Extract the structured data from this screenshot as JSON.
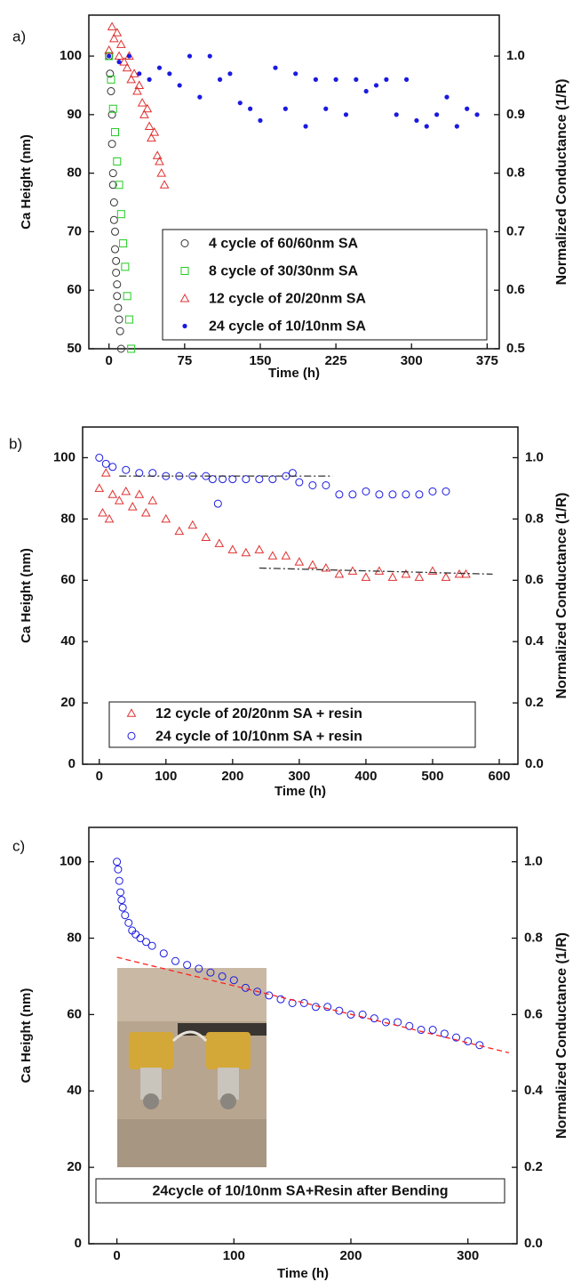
{
  "chart_data": [
    {
      "type": "scatter",
      "panel_label": "a)",
      "xlabel": "Time (h)",
      "ylabel": "Ca Height (nm)",
      "y2label": "Normalized Conductance (1/R)",
      "xlim": [
        -20,
        387
      ],
      "xticks": [
        0,
        75,
        150,
        225,
        300,
        375
      ],
      "ylim": [
        50,
        107
      ],
      "yticks": [
        50,
        60,
        70,
        80,
        90,
        100
      ],
      "y2lim": [
        0.5,
        1.07
      ],
      "y2ticks": [
        0.5,
        0.6,
        0.7,
        0.8,
        0.9,
        {
          "value": 1,
          "label": "1.0"
        }
      ],
      "legend": "lower right",
      "legend_markers": true,
      "series": [
        {
          "name": "4 cycle of 60/60nm SA",
          "color": "#333333",
          "marker": "circle",
          "x": [
            0,
            1,
            2,
            3,
            3,
            4,
            4,
            5,
            5,
            6,
            6,
            7,
            7,
            8,
            8,
            9,
            10,
            11,
            12
          ],
          "values": [
            100,
            97,
            94,
            90,
            85,
            80,
            78,
            75,
            72,
            70,
            67,
            65,
            63,
            61,
            59,
            57,
            55,
            53,
            50
          ]
        },
        {
          "name": "8 cycle of 30/30nm SA",
          "color": "#22cc22",
          "marker": "square",
          "x": [
            0,
            2,
            4,
            6,
            8,
            10,
            12,
            14,
            16,
            18,
            20,
            22
          ],
          "values": [
            100,
            96,
            91,
            87,
            82,
            78,
            73,
            68,
            64,
            59,
            55,
            50
          ]
        },
        {
          "name": "12 cycle of 20/20nm SA",
          "color": "#e03030",
          "marker": "triangle",
          "x": [
            0,
            3,
            5,
            8,
            10,
            12,
            15,
            18,
            20,
            22,
            25,
            28,
            30,
            33,
            35,
            38,
            40,
            42,
            45,
            48,
            50,
            52,
            55
          ],
          "values": [
            101,
            105,
            103,
            104,
            100,
            102,
            99,
            98,
            100,
            96,
            97,
            94,
            95,
            92,
            90,
            91,
            88,
            86,
            87,
            83,
            82,
            80,
            78
          ]
        },
        {
          "name": "24 cycle of 10/10nm SA",
          "color": "#1a1ae0",
          "marker": "dot",
          "x": [
            0,
            10,
            20,
            30,
            40,
            50,
            60,
            70,
            80,
            90,
            100,
            110,
            120,
            130,
            140,
            150,
            165,
            175,
            185,
            195,
            205,
            215,
            225,
            235,
            245,
            255,
            265,
            275,
            285,
            295,
            305,
            315,
            325,
            335,
            345,
            355,
            365
          ],
          "values": [
            100,
            99,
            100,
            97,
            96,
            98,
            97,
            95,
            100,
            93,
            100,
            96,
            97,
            92,
            91,
            89,
            98,
            91,
            97,
            88,
            96,
            91,
            96,
            90,
            96,
            94,
            95,
            96,
            90,
            96,
            89,
            88,
            90,
            93,
            88,
            91,
            90
          ]
        }
      ]
    },
    {
      "type": "scatter",
      "panel_label": "b)",
      "xlabel": "Time (h)",
      "ylabel": "Ca Height (nm)",
      "y2label": "Normalized Conductance (1/R)",
      "xlim": [
        -25,
        628
      ],
      "xticks": [
        0,
        100,
        200,
        300,
        400,
        500,
        600
      ],
      "ylim": [
        0,
        110
      ],
      "yticks": [
        0,
        20,
        40,
        60,
        80,
        100
      ],
      "y2lim": [
        0,
        1.1
      ],
      "y2ticks": [
        {
          "value": 0,
          "label": "0.0"
        },
        0.2,
        0.4,
        0.6,
        0.8,
        {
          "value": 1,
          "label": "1.0"
        }
      ],
      "legend": "lower left",
      "legend_markers": true,
      "series": [
        {
          "name": "12 cycle of 20/20nm SA + resin",
          "color": "#e03030",
          "marker": "triangle",
          "x": [
            0,
            5,
            10,
            15,
            20,
            30,
            40,
            50,
            60,
            70,
            80,
            100,
            120,
            140,
            160,
            180,
            200,
            220,
            240,
            260,
            280,
            300,
            320,
            340,
            360,
            380,
            400,
            420,
            440,
            460,
            480,
            500,
            520,
            540,
            550
          ],
          "values": [
            90,
            82,
            95,
            80,
            88,
            86,
            89,
            84,
            88,
            82,
            86,
            80,
            76,
            78,
            74,
            72,
            70,
            69,
            70,
            68,
            68,
            66,
            65,
            64,
            62,
            63,
            61,
            63,
            61,
            62,
            61,
            63,
            61,
            62,
            62
          ]
        },
        {
          "name": "24 cycle of 10/10nm SA + resin",
          "color": "#1a1ae0",
          "marker": "circle",
          "x": [
            0,
            10,
            20,
            40,
            60,
            80,
            100,
            120,
            140,
            160,
            170,
            178,
            185,
            200,
            220,
            240,
            260,
            280,
            290,
            300,
            320,
            340,
            360,
            380,
            400,
            420,
            440,
            460,
            480,
            500,
            520
          ],
          "values": [
            100,
            98,
            97,
            96,
            95,
            95,
            94,
            94,
            94,
            94,
            93,
            85,
            93,
            93,
            93,
            93,
            93,
            94,
            95,
            92,
            91,
            91,
            88,
            88,
            89,
            88,
            88,
            88,
            88,
            89,
            89
          ]
        }
      ],
      "reference_lines": [
        {
          "color": "#333333",
          "dash": "dashdot",
          "x": [
            30,
            350
          ],
          "y": [
            94,
            94
          ]
        },
        {
          "color": "#333333",
          "dash": "dashdot",
          "x": [
            240,
            590
          ],
          "y": [
            64,
            62
          ]
        }
      ]
    },
    {
      "type": "scatter",
      "panel_label": "c)",
      "xlabel": "Time (h)",
      "ylabel": "Ca Height (nm)",
      "y2label": "Normalized Conductance (1/R)",
      "xlim": [
        -24,
        342
      ],
      "xticks": [
        0,
        100,
        200,
        300
      ],
      "ylim": [
        0,
        109
      ],
      "yticks": [
        0,
        20,
        40,
        60,
        80,
        100
      ],
      "y2lim": [
        0,
        1.09
      ],
      "y2ticks": [
        {
          "value": 0,
          "label": "0.0"
        },
        0.2,
        0.4,
        0.6,
        0.8,
        {
          "value": 1,
          "label": "1.0"
        }
      ],
      "legend": "lower left",
      "legend_markers": false,
      "series": [
        {
          "name": "24cycle of 10/10nm SA+Resin after Bending",
          "color": "#1a1ae0",
          "marker": "circle",
          "x": [
            0,
            1,
            2,
            3,
            4,
            5,
            7,
            10,
            13,
            16,
            20,
            25,
            30,
            40,
            50,
            60,
            70,
            80,
            90,
            100,
            110,
            120,
            130,
            140,
            150,
            160,
            170,
            180,
            190,
            200,
            210,
            220,
            230,
            240,
            250,
            260,
            270,
            280,
            290,
            300,
            310
          ],
          "values": [
            100,
            98,
            95,
            92,
            90,
            88,
            86,
            84,
            82,
            81,
            80,
            79,
            78,
            76,
            74,
            73,
            72,
            71,
            70,
            69,
            67,
            66,
            65,
            64,
            63,
            63,
            62,
            62,
            61,
            60,
            60,
            59,
            58,
            58,
            57,
            56,
            56,
            55,
            54,
            53,
            52
          ]
        }
      ],
      "reference_lines": [
        {
          "color": "#ff2020",
          "dash": "dash",
          "x": [
            0,
            335
          ],
          "y": [
            75,
            50
          ]
        }
      ]
    }
  ]
}
